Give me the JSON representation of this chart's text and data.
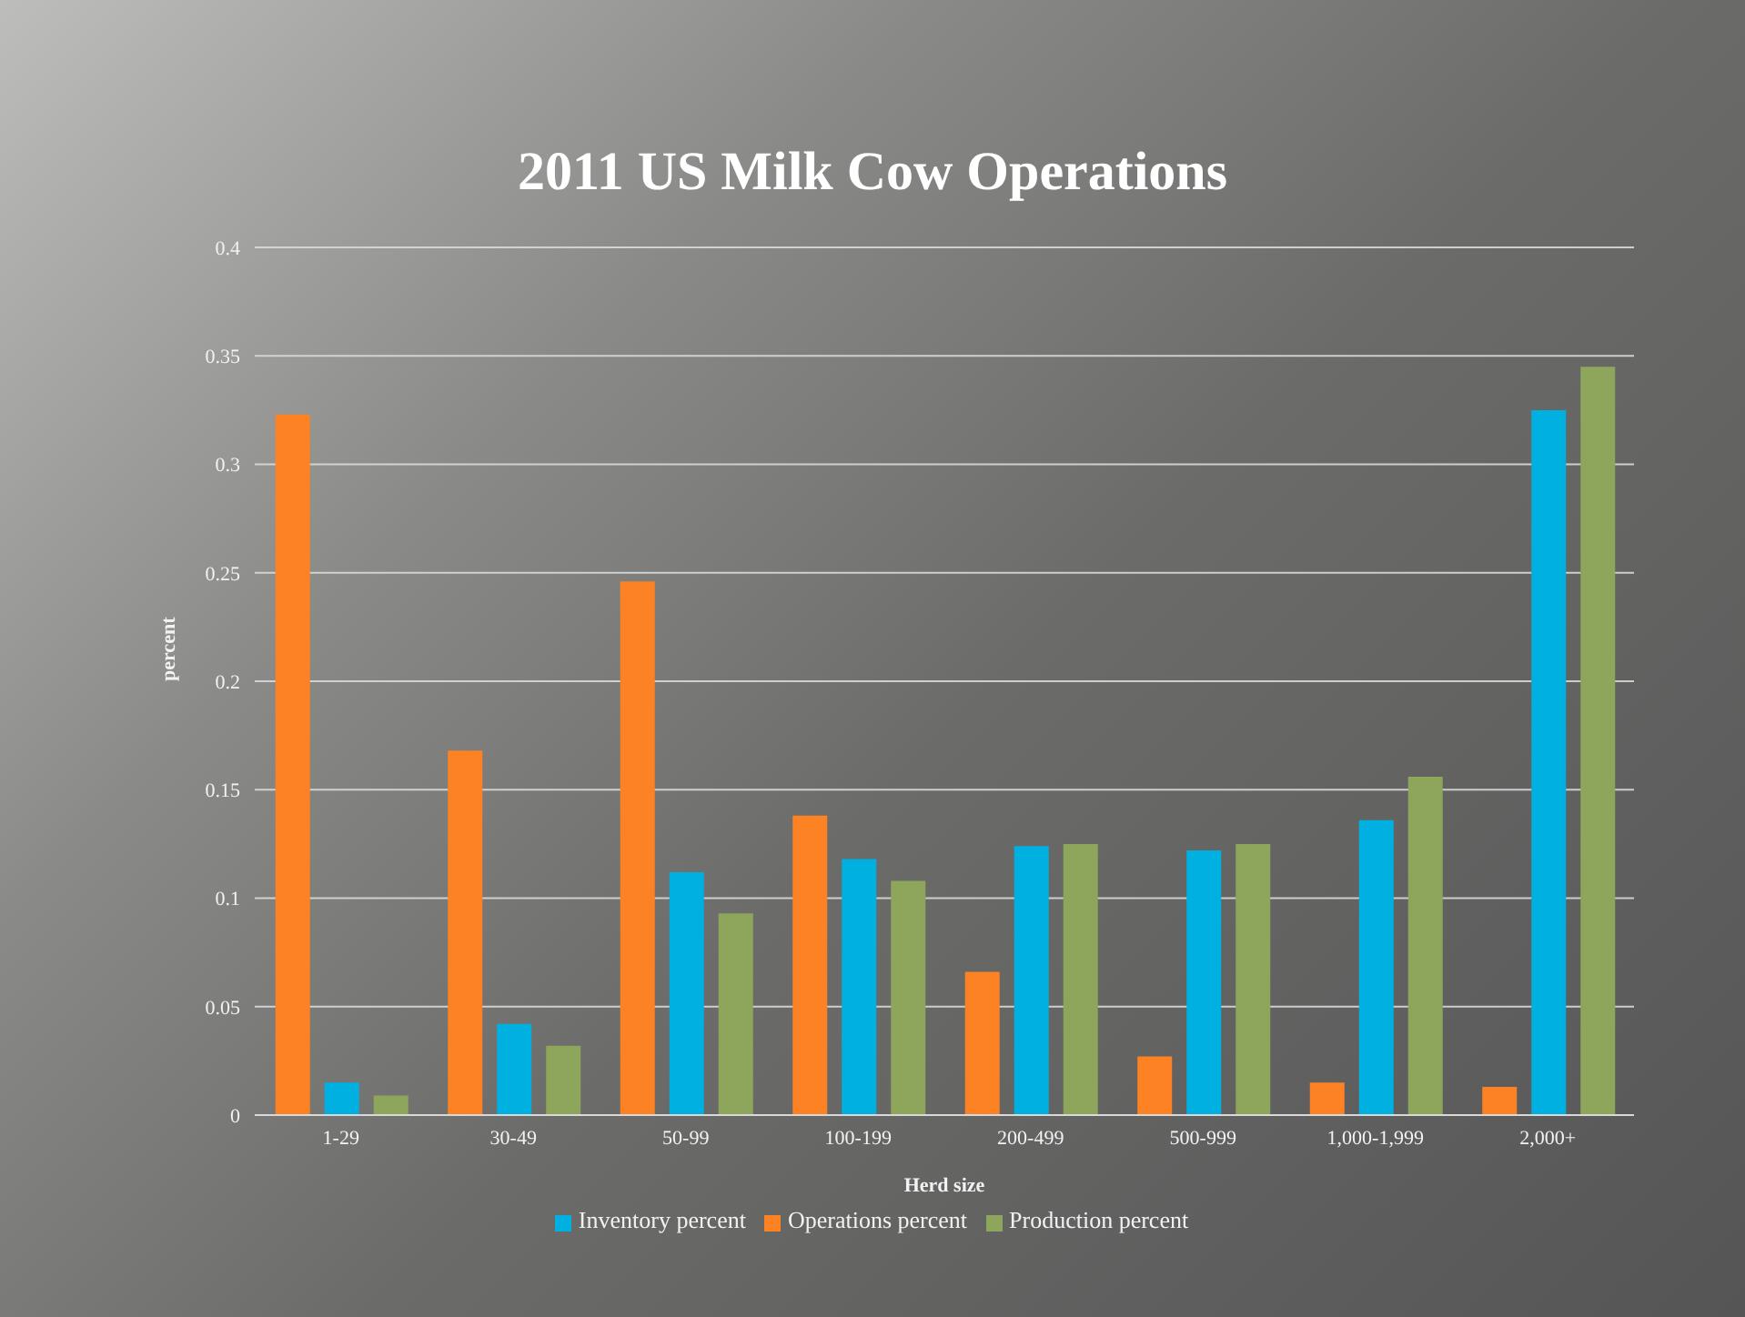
{
  "chart_data": {
    "type": "bar",
    "title": "2011 US Milk Cow Operations",
    "xlabel": "Herd size",
    "ylabel": "percent",
    "categories": [
      "1-29",
      "30-49",
      "50-99",
      "100-199",
      "200-499",
      "500-999",
      "1,000-1,999",
      "2,000+"
    ],
    "series": [
      {
        "name": "Operations percent",
        "color": "#fd8224",
        "values": [
          0.323,
          0.168,
          0.246,
          0.138,
          0.066,
          0.027,
          0.015,
          0.013
        ]
      },
      {
        "name": "Inventory percent",
        "color": "#00b0e0",
        "values": [
          0.015,
          0.042,
          0.112,
          0.118,
          0.124,
          0.122,
          0.136,
          0.325
        ]
      },
      {
        "name": "Production percent",
        "color": "#8ea65c",
        "values": [
          0.009,
          0.032,
          0.093,
          0.108,
          0.125,
          0.125,
          0.156,
          0.345
        ]
      }
    ],
    "ylim": [
      0,
      0.4
    ],
    "yticks": [
      0,
      0.05,
      0.1,
      0.15,
      0.2,
      0.25,
      0.3,
      0.35,
      0.4
    ],
    "grid": "y",
    "legend": "bottom"
  }
}
